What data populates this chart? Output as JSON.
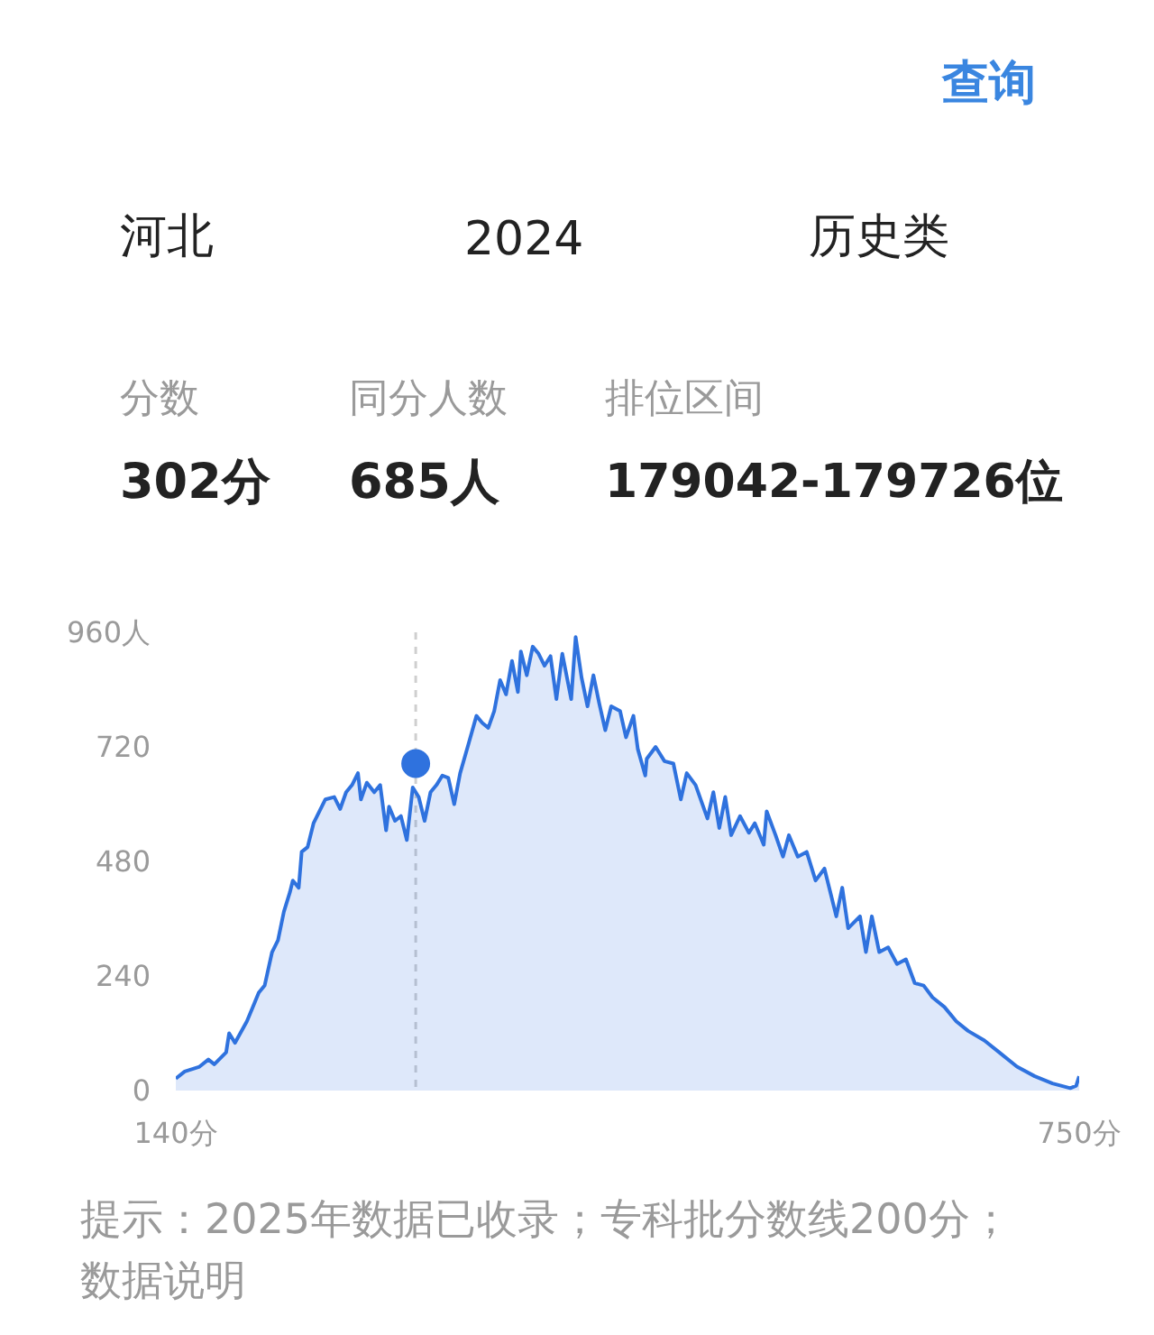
{
  "chart_data": {
    "type": "area",
    "xlim": [
      140,
      750
    ],
    "xticks": [
      {
        "value": 140,
        "label": "140分"
      },
      {
        "value": 750,
        "label": "750分"
      }
    ],
    "ylim": [
      0,
      960
    ],
    "yticks": [
      0,
      240,
      480,
      720,
      {
        "value": 960,
        "label": "960人"
      }
    ],
    "grid": false,
    "series": [
      {
        "color": "#2f72de",
        "x": [
          140,
          146,
          156,
          162,
          166,
          174,
          176,
          180,
          188,
          192,
          196,
          200,
          205,
          209,
          213,
          217,
          219,
          223,
          225,
          229,
          233,
          237,
          241,
          247,
          251,
          255,
          259,
          263,
          265,
          269,
          274,
          278,
          282,
          284,
          288,
          292,
          296,
          300,
          304,
          308,
          312,
          316,
          320,
          324,
          328,
          332,
          338,
          343,
          347,
          351,
          355,
          359,
          363,
          367,
          371,
          373,
          377,
          381,
          385,
          389,
          393,
          397,
          401,
          407,
          410,
          414,
          418,
          422,
          426,
          430,
          434,
          440,
          444,
          449,
          452,
          457,
          458,
          464,
          470,
          476,
          481,
          485,
          491,
          499,
          503,
          507,
          511,
          515,
          521,
          527,
          531,
          537,
          539,
          545,
          550,
          554,
          560,
          566,
          572,
          578,
          586,
          590,
          594,
          602,
          606,
          610,
          615,
          621,
          627,
          633,
          639,
          645,
          651,
          659,
          667,
          675,
          686,
          696,
          708,
          720,
          732,
          744,
          748,
          750
        ],
        "values": [
          25,
          40,
          50,
          65,
          55,
          80,
          120,
          100,
          145,
          175,
          205,
          220,
          290,
          315,
          375,
          415,
          440,
          425,
          500,
          510,
          560,
          585,
          610,
          615,
          590,
          625,
          640,
          665,
          610,
          645,
          625,
          640,
          545,
          595,
          565,
          575,
          525,
          635,
          615,
          565,
          625,
          640,
          660,
          655,
          600,
          665,
          730,
          785,
          770,
          760,
          795,
          860,
          830,
          900,
          835,
          920,
          870,
          930,
          915,
          890,
          910,
          820,
          915,
          820,
          950,
          865,
          805,
          870,
          810,
          755,
          805,
          795,
          740,
          785,
          715,
          660,
          695,
          720,
          690,
          685,
          610,
          665,
          640,
          570,
          625,
          550,
          615,
          535,
          575,
          540,
          560,
          515,
          585,
          535,
          490,
          535,
          490,
          500,
          440,
          465,
          365,
          425,
          340,
          365,
          290,
          365,
          290,
          300,
          265,
          275,
          225,
          220,
          195,
          175,
          145,
          125,
          105,
          80,
          50,
          30,
          15,
          5,
          10,
          30
        ]
      },
      {
        "type": "scatter",
        "color": "#2f72de",
        "marker": "circle",
        "x": [
          302
        ],
        "values": [
          685
        ]
      }
    ],
    "ref_lines": [
      {
        "axis": "x",
        "value": 302,
        "color": "#cfcfcf",
        "line_style": "dashed"
      }
    ],
    "annotations": [
      "查询",
      "河北",
      "2024",
      "历史类",
      "分数",
      "同分人数",
      "排位区间",
      "302分",
      "685人",
      "179042-179726位",
      "提示：2025年数据已收录；专科批分数线200分；",
      "数据说明"
    ]
  }
}
